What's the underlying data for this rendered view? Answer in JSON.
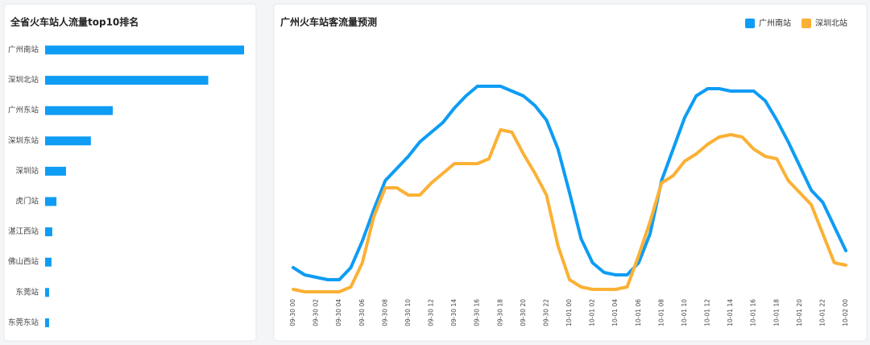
{
  "chart_data": [
    {
      "type": "hbar",
      "title": "全省火车站人流量top10排名",
      "categories": [
        "广州南站",
        "深圳北站",
        "广州东站",
        "深圳东站",
        "深圳站",
        "虎门站",
        "湛江西站",
        "佛山西站",
        "东莞站",
        "东莞东站"
      ],
      "values": [
        100,
        82,
        34,
        23,
        10.5,
        5.7,
        3.6,
        3.2,
        2,
        2
      ],
      "color": "#0e9cf4",
      "xlim": [
        0,
        100
      ]
    },
    {
      "type": "line",
      "title": "广州火车站客流量预测",
      "categories": [
        "09-30 00",
        null,
        "09-30 02",
        null,
        "09-30 04",
        null,
        "09-30 06",
        null,
        "09-30 08",
        null,
        "09-30 10",
        null,
        "09-30 12",
        null,
        "09-30 14",
        null,
        "09-30 16",
        null,
        "09-30 18",
        null,
        "09-30 20",
        null,
        "09-30 22",
        null,
        "10-01 00",
        null,
        "10-01 02",
        null,
        "10-01 04",
        null,
        "10-01 06",
        null,
        "10-01 08",
        null,
        "10-01 10",
        null,
        "10-01 12",
        null,
        "10-01 14",
        null,
        "10-01 16",
        null,
        "10-01 18",
        null,
        "10-01 20",
        null,
        "10-01 22",
        null,
        "10-02 00"
      ],
      "series": [
        {
          "name": "广州南站",
          "color": "#0e9cf4",
          "values": [
            11,
            8,
            7,
            6,
            6,
            11,
            22,
            35,
            47,
            52,
            57,
            63,
            67,
            71,
            77,
            82,
            86,
            86,
            86,
            84,
            82,
            78,
            72,
            60,
            42,
            23,
            13,
            9,
            8,
            8,
            13,
            25,
            47,
            60,
            73,
            82,
            85,
            85,
            84,
            84,
            84,
            80,
            72,
            63,
            53,
            43,
            38,
            28,
            18
          ]
        },
        {
          "name": "深圳北站",
          "color": "#fbb135",
          "values": [
            2,
            1,
            1,
            1,
            1,
            3,
            13,
            32,
            44,
            44,
            41,
            41,
            46,
            50,
            54,
            54,
            54,
            56,
            68,
            67,
            58,
            50,
            41,
            20,
            6,
            3,
            2,
            2,
            2,
            3,
            16,
            30,
            46,
            49,
            55,
            58,
            62,
            65,
            66,
            65,
            60,
            57,
            56,
            47,
            42,
            37,
            25,
            13,
            12
          ]
        }
      ],
      "ylim": [
        0,
        100
      ],
      "legend": "upper right"
    }
  ]
}
